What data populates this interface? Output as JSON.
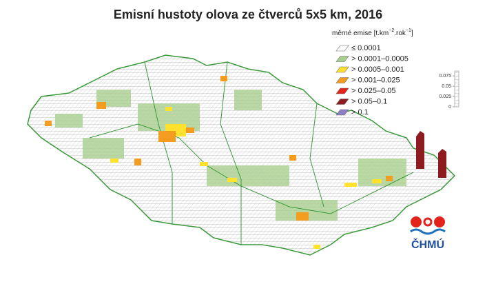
{
  "title": "Emisní hustoty olova ze čtverců 5x5 km, 2016",
  "legend": {
    "title": [
      "měrné emise [t.km",
      "−2",
      ".rok",
      "−1",
      "]"
    ],
    "items": [
      {
        "label": "≤ 0.0001",
        "color": "#ffffff"
      },
      {
        "label": "> 0.0001–0.0005",
        "color": "#a9cf8f"
      },
      {
        "label": "> 0.0005–0.001",
        "color": "#ffe12e"
      },
      {
        "label": "> 0.001–0.025",
        "color": "#f39c1f"
      },
      {
        "label": "> 0.025–0.05",
        "color": "#e3221c"
      },
      {
        "label": "> 0.05–0.1",
        "color": "#8e1b20"
      },
      {
        "label": "> 0.1",
        "color": "#8c7fc6"
      }
    ]
  },
  "scale": {
    "ticks": [
      0.075,
      0.05,
      0.025,
      0
    ]
  },
  "logo": "ČHMÚ"
}
